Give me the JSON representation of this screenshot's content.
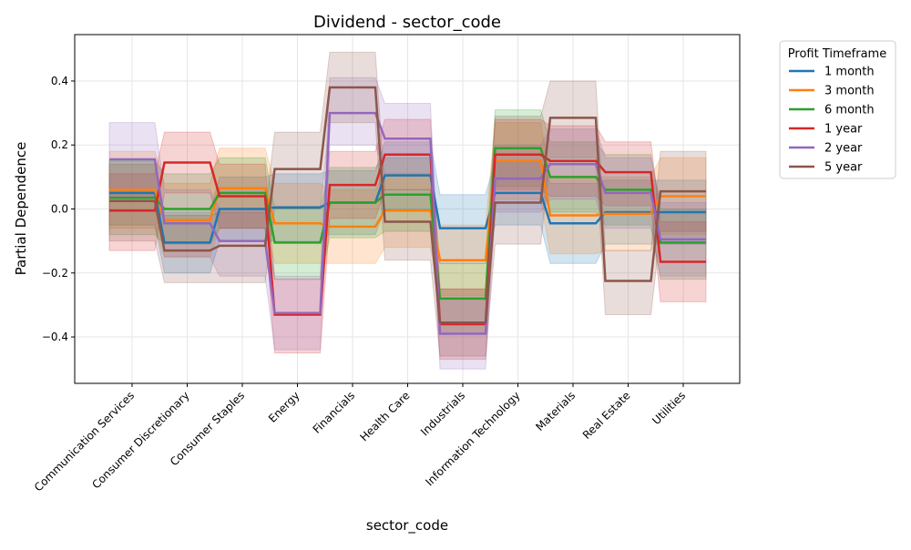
{
  "chart_data": {
    "type": "line",
    "title": "Dividend - sector_code",
    "xlabel": "sector_code",
    "ylabel": "Partial Dependence",
    "ylim": [
      -0.545,
      0.545
    ],
    "yticks": [
      -0.4,
      -0.2,
      0.0,
      0.2,
      0.4
    ],
    "ytick_labels": [
      "−0.4",
      "−0.2",
      "0.0",
      "0.2",
      "0.4"
    ],
    "grid": true,
    "legend": {
      "title": "Profit Timeframe",
      "placement": "outside-right"
    },
    "categories": [
      "Communication Services",
      "Consumer Discretionary",
      "Consumer Staples",
      "Energy",
      "Financials",
      "Health Care",
      "Industrials",
      "Information Technology",
      "Materials",
      "Real Estate",
      "Utilities"
    ],
    "series": [
      {
        "name": "1 month",
        "color": "#1f77b4",
        "values": [
          0.05,
          -0.105,
          0.0,
          0.005,
          0.02,
          0.105,
          -0.06,
          0.05,
          -0.045,
          -0.01,
          -0.01
        ],
        "lower": [
          -0.05,
          -0.2,
          -0.1,
          -0.1,
          -0.08,
          0.0,
          -0.17,
          -0.05,
          -0.17,
          -0.11,
          -0.11
        ],
        "upper": [
          0.15,
          -0.01,
          0.1,
          0.11,
          0.12,
          0.21,
          0.045,
          0.15,
          0.08,
          0.09,
          0.09
        ]
      },
      {
        "name": "3 month",
        "color": "#ff7f0e",
        "values": [
          0.06,
          -0.035,
          0.065,
          -0.045,
          -0.055,
          -0.005,
          -0.16,
          0.15,
          -0.02,
          -0.015,
          0.04
        ],
        "lower": [
          -0.06,
          -0.15,
          -0.06,
          -0.17,
          -0.17,
          -0.12,
          -0.27,
          0.03,
          -0.14,
          -0.13,
          -0.08
        ],
        "upper": [
          0.18,
          0.08,
          0.19,
          0.08,
          0.06,
          0.11,
          -0.05,
          0.27,
          0.1,
          0.1,
          0.16
        ]
      },
      {
        "name": "6 month",
        "color": "#2ca02c",
        "values": [
          0.035,
          0.0,
          0.05,
          -0.105,
          0.02,
          0.045,
          -0.28,
          0.19,
          0.1,
          0.06,
          -0.105
        ],
        "lower": [
          -0.08,
          -0.11,
          -0.06,
          -0.22,
          -0.09,
          -0.07,
          -0.39,
          0.07,
          -0.01,
          -0.05,
          -0.22
        ],
        "upper": [
          0.15,
          0.11,
          0.16,
          0.0,
          0.13,
          0.16,
          -0.17,
          0.31,
          0.21,
          0.17,
          0.0
        ]
      },
      {
        "name": "1 year",
        "color": "#d62728",
        "values": [
          -0.005,
          0.145,
          0.04,
          -0.33,
          0.075,
          0.17,
          -0.36,
          0.17,
          0.15,
          0.115,
          -0.165
        ],
        "lower": [
          -0.13,
          0.05,
          -0.06,
          -0.45,
          -0.03,
          0.06,
          -0.47,
          0.06,
          0.04,
          0.01,
          -0.29
        ],
        "upper": [
          0.11,
          0.24,
          0.14,
          -0.22,
          0.18,
          0.28,
          -0.25,
          0.28,
          0.26,
          0.21,
          -0.04
        ]
      },
      {
        "name": "2 year",
        "color": "#9467bd",
        "values": [
          0.155,
          -0.045,
          -0.1,
          -0.325,
          0.3,
          0.22,
          -0.39,
          0.095,
          0.14,
          0.05,
          -0.095
        ],
        "lower": [
          0.04,
          -0.15,
          -0.21,
          -0.44,
          0.2,
          0.11,
          -0.5,
          -0.01,
          0.03,
          -0.06,
          -0.21
        ],
        "upper": [
          0.27,
          0.06,
          0.0,
          -0.21,
          0.41,
          0.33,
          -0.28,
          0.2,
          0.25,
          0.16,
          0.02
        ]
      },
      {
        "name": "5 year",
        "color": "#8c564b",
        "values": [
          0.025,
          -0.13,
          -0.115,
          0.125,
          0.38,
          -0.04,
          -0.355,
          0.02,
          0.285,
          -0.225,
          0.055
        ],
        "lower": [
          -0.1,
          -0.23,
          -0.23,
          0.0,
          0.27,
          -0.16,
          -0.46,
          -0.11,
          0.16,
          -0.33,
          -0.07
        ],
        "upper": [
          0.14,
          -0.02,
          -0.01,
          0.24,
          0.49,
          0.06,
          -0.25,
          0.29,
          0.4,
          -0.13,
          0.18
        ]
      }
    ]
  }
}
